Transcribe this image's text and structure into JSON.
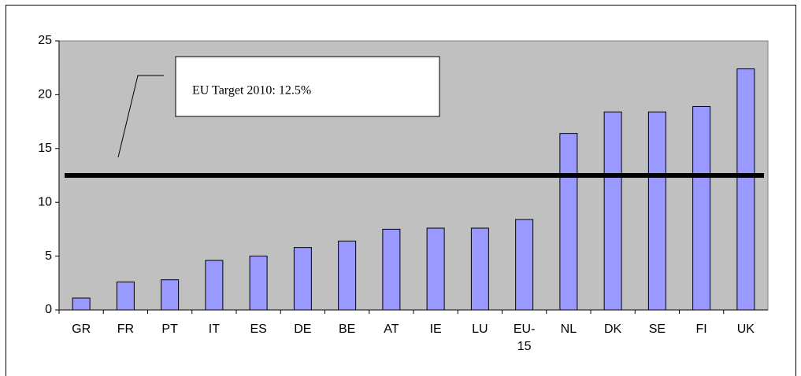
{
  "chart_data": {
    "type": "bar",
    "categories": [
      "GR",
      "FR",
      "PT",
      "IT",
      "ES",
      "DE",
      "BE",
      "AT",
      "IE",
      "LU",
      "EU-15",
      "NL",
      "DK",
      "SE",
      "FI",
      "UK"
    ],
    "values": [
      1.1,
      2.6,
      2.8,
      4.6,
      5.0,
      5.8,
      6.4,
      7.5,
      7.6,
      7.6,
      8.4,
      16.4,
      18.4,
      18.4,
      18.9,
      22.4
    ],
    "color": "#9999ff",
    "ylim": [
      0,
      25
    ],
    "yticks": [
      0,
      5,
      10,
      15,
      20,
      25
    ],
    "grid": false,
    "reference_line": {
      "value": 12.5,
      "label": "EU Target 2010: 12.5%"
    }
  }
}
